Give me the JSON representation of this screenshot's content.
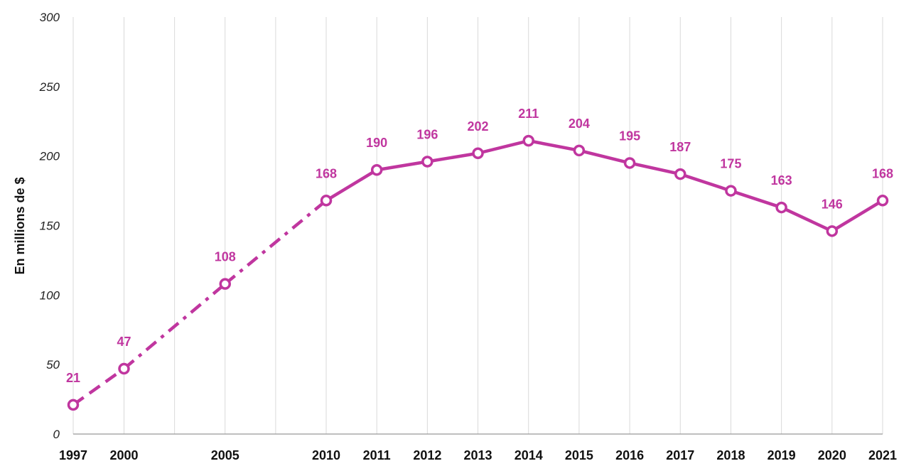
{
  "chart_data": {
    "type": "line",
    "title": "",
    "xlabel": "",
    "ylabel": "En millions de $",
    "ylim": [
      0,
      300
    ],
    "yticks": [
      0,
      50,
      100,
      150,
      200,
      250,
      300
    ],
    "grid": "vertical",
    "color": "#c0369f",
    "x": [
      "1997",
      "2000",
      "2005",
      "2010",
      "2011",
      "2012",
      "2013",
      "2014",
      "2015",
      "2016",
      "2017",
      "2018",
      "2019",
      "2020",
      "2021"
    ],
    "extra_gridlines_x": [
      "2002.5",
      "2007.5"
    ],
    "series": [
      {
        "values": [
          21,
          47,
          108,
          168,
          190,
          196,
          202,
          211,
          204,
          195,
          187,
          175,
          163,
          146,
          168
        ]
      }
    ],
    "segment_styles": [
      "dashed",
      "dash-dot",
      "dash-dot",
      "solid",
      "solid",
      "solid",
      "solid",
      "solid",
      "solid",
      "solid",
      "solid",
      "solid",
      "solid",
      "solid"
    ]
  }
}
